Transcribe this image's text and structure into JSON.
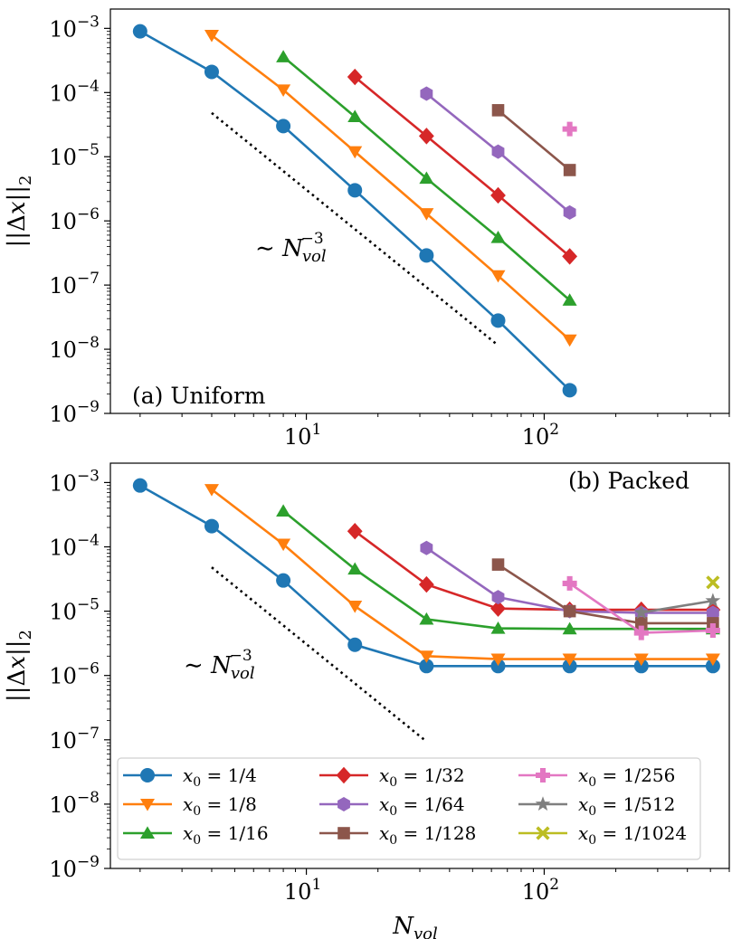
{
  "chart_data": [
    {
      "type": "line",
      "panel_label": "(a) Uniform",
      "xscale": "log",
      "yscale": "log",
      "xlim": [
        1.5,
        600
      ],
      "ylim": [
        1e-09,
        0.002
      ],
      "xticks": [
        10,
        100
      ],
      "xtick_labels": [
        "10^1",
        "10^2"
      ],
      "yticks": [
        1e-09,
        1e-08,
        1e-07,
        1e-06,
        1e-05,
        0.0001,
        0.001
      ],
      "ytick_labels": [
        "10^-9",
        "10^-8",
        "10^-7",
        "10^-6",
        "10^-5",
        "10^-4",
        "10^-3"
      ],
      "ylabel": "||Δx||_2",
      "xlabel": "",
      "reference_line": {
        "label": "~ N_vol^-3",
        "x": [
          4,
          64
        ],
        "y": [
          4.8e-05,
          1.15e-08
        ]
      },
      "series": [
        {
          "name": "x0 = 1/4",
          "color": "#1f77b4",
          "marker": "circle",
          "x": [
            2,
            4,
            8,
            16,
            32,
            64,
            128
          ],
          "y": [
            0.0009,
            0.00021,
            3e-05,
            3e-06,
            2.9e-07,
            2.8e-08,
            2.3e-09
          ]
        },
        {
          "name": "x0 = 1/8",
          "color": "#ff7f0e",
          "marker": "triangle-down",
          "x": [
            4,
            8,
            16,
            32,
            64,
            128
          ],
          "y": [
            0.00078,
            0.00011,
            1.2e-05,
            1.3e-06,
            1.4e-07,
            1.4e-08
          ]
        },
        {
          "name": "x0 = 1/16",
          "color": "#2ca02c",
          "marker": "triangle-up",
          "x": [
            8,
            16,
            32,
            64,
            128
          ],
          "y": [
            0.00036,
            4.2e-05,
            4.6e-06,
            5.5e-07,
            5.8e-08
          ]
        },
        {
          "name": "x0 = 1/32",
          "color": "#d62728",
          "marker": "diamond",
          "x": [
            16,
            32,
            64,
            128
          ],
          "y": [
            0.000175,
            2.1e-05,
            2.5e-06,
            2.8e-07
          ]
        },
        {
          "name": "x0 = 1/64",
          "color": "#9467bd",
          "marker": "hexagon",
          "x": [
            32,
            64,
            128
          ],
          "y": [
            9.6e-05,
            1.2e-05,
            1.35e-06
          ]
        },
        {
          "name": "x0 = 1/128",
          "color": "#8c564b",
          "marker": "square",
          "x": [
            64,
            128
          ],
          "y": [
            5.3e-05,
            6.2e-06
          ]
        },
        {
          "name": "x0 = 1/256",
          "color": "#e377c2",
          "marker": "plus",
          "x": [
            128
          ],
          "y": [
            2.7e-05
          ]
        }
      ]
    },
    {
      "type": "line",
      "panel_label": "(b) Packed",
      "xscale": "log",
      "yscale": "log",
      "xlim": [
        1.5,
        600
      ],
      "ylim": [
        1e-09,
        0.002
      ],
      "xticks": [
        10,
        100
      ],
      "xtick_labels": [
        "10^1",
        "10^2"
      ],
      "yticks": [
        1e-09,
        1e-08,
        1e-07,
        1e-06,
        1e-05,
        0.0001,
        0.001
      ],
      "ytick_labels": [
        "10^-9",
        "10^-8",
        "10^-7",
        "10^-6",
        "10^-5",
        "10^-4",
        "10^-3"
      ],
      "ylabel": "||Δx||_2",
      "xlabel": "N_vol",
      "reference_line": {
        "label": "~ N_vol^-3",
        "x": [
          4,
          32
        ],
        "y": [
          4.8e-05,
          9.4e-08
        ]
      },
      "legend": {
        "position": "lower-left",
        "columns": 3
      },
      "series": [
        {
          "name": "x0 = 1/4",
          "color": "#1f77b4",
          "marker": "circle",
          "x": [
            2,
            4,
            8,
            16,
            32,
            64,
            128,
            256,
            512
          ],
          "y": [
            0.0009,
            0.00021,
            3e-05,
            3e-06,
            1.4e-06,
            1.4e-06,
            1.4e-06,
            1.4e-06,
            1.4e-06
          ]
        },
        {
          "name": "x0 = 1/8",
          "color": "#ff7f0e",
          "marker": "triangle-down",
          "x": [
            4,
            8,
            16,
            32,
            64,
            128,
            256,
            512
          ],
          "y": [
            0.00078,
            0.00011,
            1.2e-05,
            2e-06,
            1.8e-06,
            1.8e-06,
            1.8e-06,
            1.8e-06
          ]
        },
        {
          "name": "x0 = 1/16",
          "color": "#2ca02c",
          "marker": "triangle-up",
          "x": [
            8,
            16,
            32,
            64,
            128,
            256,
            512
          ],
          "y": [
            0.00036,
            4.5e-05,
            7.5e-06,
            5.4e-06,
            5.3e-06,
            5.3e-06,
            5.3e-06
          ]
        },
        {
          "name": "x0 = 1/32",
          "color": "#d62728",
          "marker": "diamond",
          "x": [
            16,
            32,
            64,
            128,
            256,
            512
          ],
          "y": [
            0.000175,
            2.6e-05,
            1.1e-05,
            1.05e-05,
            1.05e-05,
            1.05e-05
          ]
        },
        {
          "name": "x0 = 1/64",
          "color": "#9467bd",
          "marker": "hexagon",
          "x": [
            32,
            64,
            128,
            256,
            512
          ],
          "y": [
            9.6e-05,
            1.65e-05,
            1e-05,
            9.4e-06,
            9.4e-06
          ]
        },
        {
          "name": "x0 = 1/128",
          "color": "#8c564b",
          "marker": "square",
          "x": [
            64,
            128,
            256,
            512
          ],
          "y": [
            5.3e-05,
            1e-05,
            6.5e-06,
            6.5e-06
          ]
        },
        {
          "name": "x0 = 1/256",
          "color": "#e377c2",
          "marker": "plus",
          "x": [
            128,
            256,
            512
          ],
          "y": [
            2.7e-05,
            4.6e-06,
            5e-06
          ]
        },
        {
          "name": "x0 = 1/512",
          "color": "#7f7f7f",
          "marker": "star",
          "x": [
            256,
            512
          ],
          "y": [
            9.5e-06,
            1.45e-05
          ]
        },
        {
          "name": "x0 = 1/1024",
          "color": "#bcbd22",
          "marker": "x",
          "x": [
            512
          ],
          "y": [
            2.8e-05
          ]
        }
      ]
    }
  ]
}
